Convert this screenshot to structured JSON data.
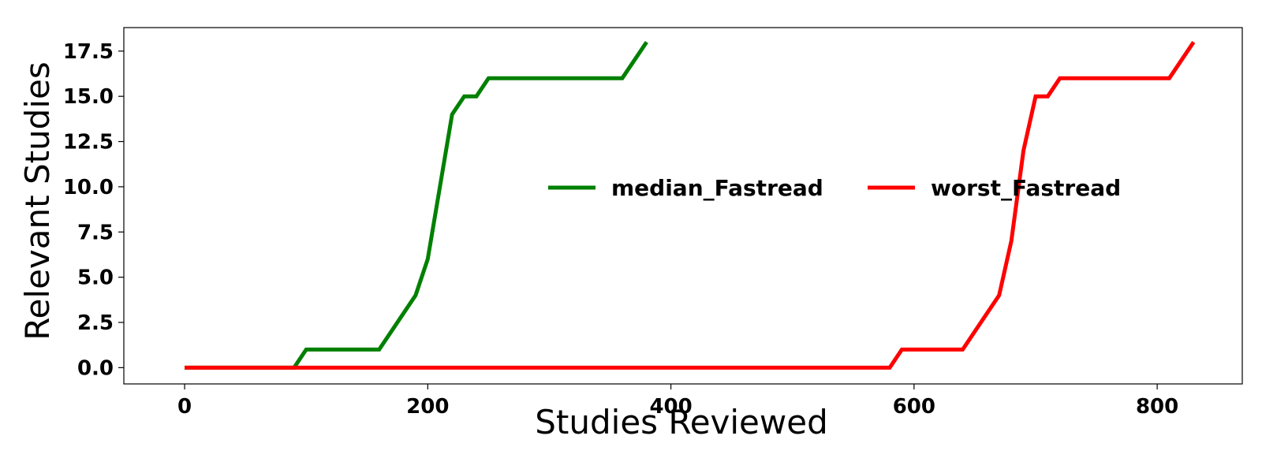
{
  "chart_data": {
    "type": "line",
    "title": "",
    "xlabel": "Studies Reviewed",
    "ylabel": "Relevant Studies",
    "xlim": [
      -50,
      870
    ],
    "ylim": [
      -0.9,
      18.8
    ],
    "x_ticks": [
      0,
      200,
      400,
      600,
      800
    ],
    "x_tick_labels": [
      "0",
      "200",
      "400",
      "600",
      "800"
    ],
    "y_ticks": [
      0,
      2.5,
      5,
      7.5,
      10,
      12.5,
      15,
      17.5
    ],
    "y_tick_labels": [
      "0.0",
      "2.5",
      "5.0",
      "7.5",
      "10.0",
      "12.5",
      "15.0",
      "17.5"
    ],
    "grid": false,
    "legend_position": "center-right",
    "series": [
      {
        "name": "median_Fastread",
        "color": "#008000",
        "x": [
          0,
          90,
          100,
          160,
          190,
          200,
          220,
          230,
          240,
          250,
          360,
          380
        ],
        "y": [
          0,
          0,
          1,
          1,
          4,
          6,
          14,
          15,
          15,
          16,
          16,
          18
        ]
      },
      {
        "name": "worst_Fastread",
        "color": "#ff0000",
        "x": [
          0,
          580,
          590,
          640,
          670,
          680,
          690,
          700,
          710,
          720,
          810,
          830
        ],
        "y": [
          0,
          0,
          1,
          1,
          4,
          7,
          12,
          15,
          15,
          16,
          16,
          18
        ]
      }
    ]
  }
}
